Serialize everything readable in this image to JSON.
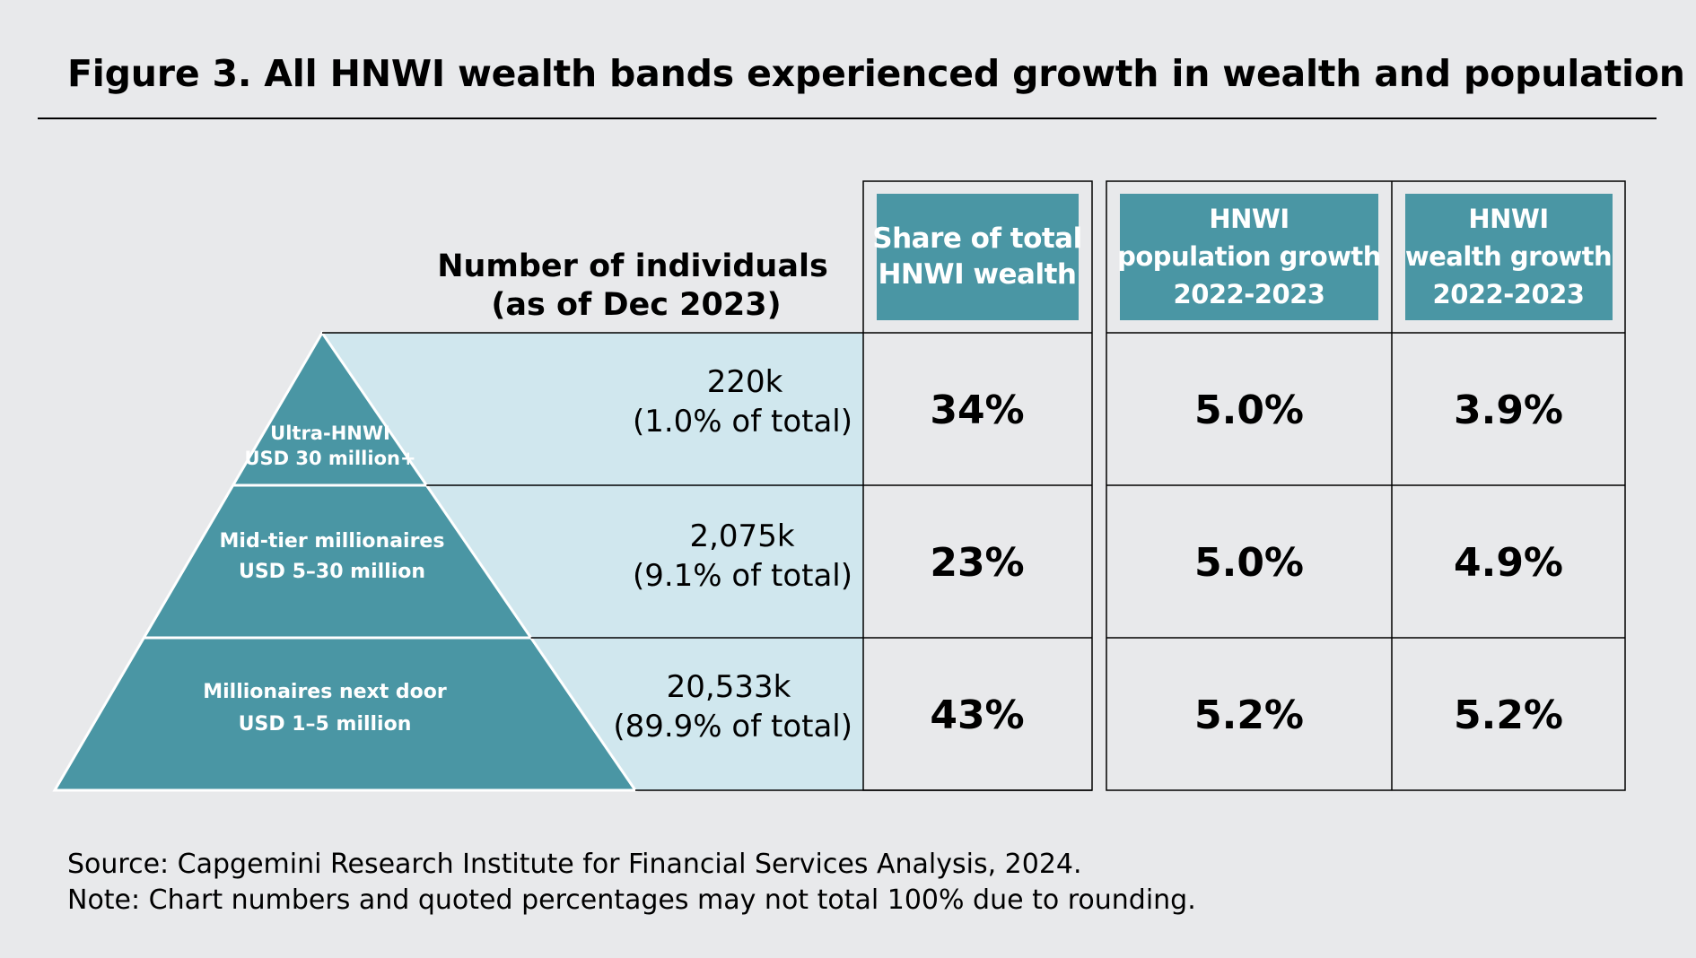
{
  "title": "Figure 3. All HNWI wealth bands experienced growth in wealth and population",
  "footer": {
    "source": "Source: Capgemini Research Institute for Financial Services Analysis, 2024.",
    "note": "Note: Chart numbers and quoted percentages may not total 100% due to rounding."
  },
  "colors": {
    "background": "#e8e9eb",
    "teal": "#4a96a4",
    "light_band": "#d0e7ee",
    "text": "#000000",
    "header_text": "#ffffff"
  },
  "chart_data": {
    "type": "table",
    "title": "Figure 3. All HNWI wealth bands experienced growth in wealth and population",
    "individuals_header": [
      "Number of individuals",
      "(as of Dec 2023)"
    ],
    "columns": [
      {
        "key": "share",
        "lines": [
          "Share of total",
          "HNWI wealth"
        ]
      },
      {
        "key": "pop_growth",
        "lines": [
          "HNWI",
          "population growth",
          "2022-2023"
        ]
      },
      {
        "key": "wealth_growth",
        "lines": [
          "HNWI",
          "wealth growth",
          "2022-2023"
        ]
      }
    ],
    "rows": [
      {
        "band": "Ultra-HNWI",
        "range": "USD 30 million+",
        "individuals": "220k",
        "individuals_share": "(1.0% of total)",
        "individuals_k": 220,
        "individuals_pct": 1.0,
        "share": "34%",
        "pop_growth": "5.0%",
        "wealth_growth": "3.9%"
      },
      {
        "band": "Mid-tier millionaires",
        "range": "USD 5–30 million",
        "individuals": "2,075k",
        "individuals_share": "(9.1% of total)",
        "individuals_k": 2075,
        "individuals_pct": 9.1,
        "share": "23%",
        "pop_growth": "5.0%",
        "wealth_growth": "4.9%"
      },
      {
        "band": "Millionaires next door",
        "range": "USD 1–5 million",
        "individuals": "20,533k",
        "individuals_share": "(89.9% of total)",
        "individuals_k": 20533,
        "individuals_pct": 89.9,
        "share": "43%",
        "pop_growth": "5.2%",
        "wealth_growth": "5.2%"
      }
    ]
  }
}
